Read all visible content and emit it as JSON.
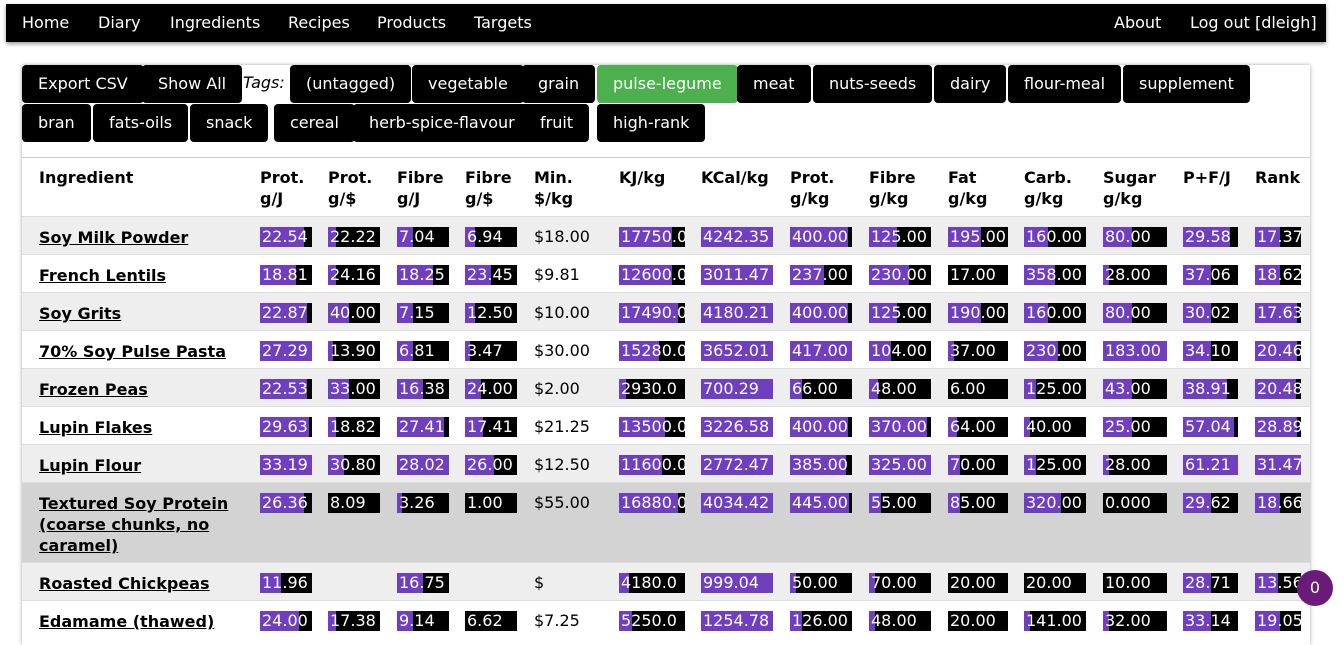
{
  "nav": {
    "left": [
      "Home",
      "Diary",
      "Ingredients",
      "Recipes",
      "Products",
      "Targets"
    ],
    "about": "About",
    "logout": "Log out [dleigh]"
  },
  "toolbar": {
    "export_csv": "Export CSV",
    "show_all": "Show All",
    "tags_label": "Tags:",
    "tags": [
      {
        "label": "(untagged)",
        "active": false
      },
      {
        "label": "vegetable",
        "active": false
      },
      {
        "label": "grain",
        "active": false
      },
      {
        "label": "pulse-legume",
        "active": true
      },
      {
        "label": "meat",
        "active": false
      },
      {
        "label": "nuts-seeds",
        "active": false
      },
      {
        "label": "dairy",
        "active": false
      },
      {
        "label": "flour-meal",
        "active": false
      },
      {
        "label": "supplement",
        "active": false
      },
      {
        "label": "bran",
        "active": false
      },
      {
        "label": "fats-oils",
        "active": false
      },
      {
        "label": "snack",
        "active": false
      },
      {
        "label": "cereal",
        "active": false
      },
      {
        "label": "herb-spice-flavour",
        "active": false
      },
      {
        "label": "fruit",
        "active": false
      },
      {
        "label": "high-rank",
        "active": false
      }
    ]
  },
  "table": {
    "headers": [
      "Ingredient",
      "Prot. g/J",
      "Prot. g/$",
      "Fibre g/J",
      "Fibre g/$",
      "Min. $/kg",
      "KJ/kg",
      "KCal/kg",
      "Prot. g/kg",
      "Fibre g/kg",
      "Fat g/kg",
      "Carb. g/kg",
      "Sugar g/kg",
      "P+F/J",
      "Rank"
    ],
    "rows": [
      {
        "name": "Soy Milk Powder",
        "cells": [
          "22.54",
          "22.22",
          "7.04",
          "6.94",
          "$18.00",
          "17750.0",
          "4242.35",
          "400.00",
          "125.00",
          "195.00",
          "160.00",
          "80.00",
          "29.58",
          "17.37"
        ],
        "levels": [
          0.85,
          0.15,
          0.3,
          0.2,
          null,
          0.8,
          1.0,
          0.93,
          0.45,
          0.55,
          0.38,
          0.45,
          0.85,
          0.55
        ]
      },
      {
        "name": "French Lentils",
        "cells": [
          "18.81",
          "24.16",
          "18.25",
          "23.45",
          "$9.81",
          "12600.0",
          "3011.47",
          "237.00",
          "230.00",
          "17.00",
          "358.00",
          "28.00",
          "37.06",
          "18.62"
        ],
        "levels": [
          0.7,
          0.15,
          0.7,
          0.5,
          null,
          0.8,
          1.0,
          0.55,
          0.65,
          0.0,
          0.5,
          0.1,
          0.5,
          0.55
        ]
      },
      {
        "name": "Soy Grits",
        "cells": [
          "22.87",
          "40.00",
          "7.15",
          "12.50",
          "$10.00",
          "17490.0",
          "4180.21",
          "400.00",
          "125.00",
          "190.00",
          "160.00",
          "80.00",
          "30.02",
          "17.63"
        ],
        "levels": [
          0.9,
          0.4,
          0.3,
          0.2,
          null,
          0.9,
          1.0,
          0.93,
          0.45,
          0.55,
          0.38,
          0.45,
          0.5,
          0.92
        ]
      },
      {
        "name": "70% Soy Pulse Pasta",
        "cells": [
          "27.29",
          "13.90",
          "6.81",
          "3.47",
          "$30.00",
          "15280.0",
          "3652.01",
          "417.00",
          "104.00",
          "37.00",
          "230.00",
          "183.00",
          "34.10",
          "20.46"
        ],
        "levels": [
          1.0,
          0.1,
          0.3,
          0.1,
          null,
          0.6,
          1.0,
          1.0,
          0.35,
          0.1,
          0.55,
          1.0,
          0.5,
          0.92
        ]
      },
      {
        "name": "Frozen Peas",
        "cells": [
          "22.53",
          "33.00",
          "16.38",
          "24.00",
          "$2.00",
          "2930.0",
          "700.29",
          "66.00",
          "48.00",
          "6.00",
          "125.00",
          "43.00",
          "38.91",
          "20.48"
        ],
        "levels": [
          0.9,
          0.4,
          0.5,
          0.3,
          null,
          0.1,
          1.0,
          0.2,
          0.15,
          0.0,
          0.2,
          0.45,
          0.8,
          0.9
        ]
      },
      {
        "name": "Lupin Flakes",
        "cells": [
          "29.63",
          "18.82",
          "27.41",
          "17.41",
          "$21.25",
          "13500.0",
          "3226.58",
          "400.00",
          "370.00",
          "64.00",
          "40.00",
          "25.00",
          "57.04",
          "28.89"
        ],
        "levels": [
          0.95,
          0.15,
          0.9,
          0.35,
          null,
          0.7,
          1.0,
          0.93,
          0.93,
          0.15,
          0.1,
          0.45,
          0.93,
          0.92
        ]
      },
      {
        "name": "Lupin Flour",
        "cells": [
          "33.19",
          "30.80",
          "28.02",
          "26.00",
          "$12.50",
          "11600.0",
          "2772.47",
          "385.00",
          "325.00",
          "70.00",
          "125.00",
          "28.00",
          "61.21",
          "31.47"
        ],
        "levels": [
          1.0,
          0.3,
          1.0,
          0.55,
          null,
          0.65,
          1.0,
          0.9,
          1.0,
          0.2,
          0.2,
          0.1,
          1.0,
          1.0
        ]
      },
      {
        "name": "Textured Soy Protein (coarse chunks, no caramel)",
        "cells": [
          "26.36",
          "8.09",
          "3.26",
          "1.00",
          "$55.00",
          "16880.0",
          "4034.42",
          "445.00",
          "55.00",
          "85.00",
          "320.00",
          "0.000",
          "29.62",
          "18.66"
        ],
        "levels": [
          0.85,
          0.0,
          0.1,
          0.0,
          null,
          0.9,
          1.0,
          0.95,
          0.2,
          0.2,
          0.6,
          0.0,
          0.5,
          0.55
        ]
      },
      {
        "name": "Roasted Chickpeas",
        "cells": [
          "11.96",
          "",
          "16.75",
          "",
          "$",
          "4180.0",
          "999.04",
          "50.00",
          "70.00",
          "20.00",
          "20.00",
          "10.00",
          "28.71",
          "13.56"
        ],
        "levels": [
          0.4,
          null,
          0.5,
          null,
          null,
          0.15,
          1.0,
          0.1,
          0.1,
          0.0,
          0.0,
          0.0,
          0.5,
          0.5
        ]
      },
      {
        "name": "Edamame (thawed)",
        "cells": [
          "24.00",
          "17.38",
          "9.14",
          "6.62",
          "$7.25",
          "5250.0",
          "1254.78",
          "126.00",
          "48.00",
          "20.00",
          "141.00",
          "32.00",
          "33.14",
          "19.05"
        ],
        "levels": [
          0.75,
          0.15,
          0.3,
          0.0,
          null,
          0.2,
          1.0,
          0.2,
          0.1,
          0.0,
          0.1,
          0.1,
          0.5,
          0.55
        ]
      }
    ]
  },
  "fab": {
    "label": "0"
  }
}
